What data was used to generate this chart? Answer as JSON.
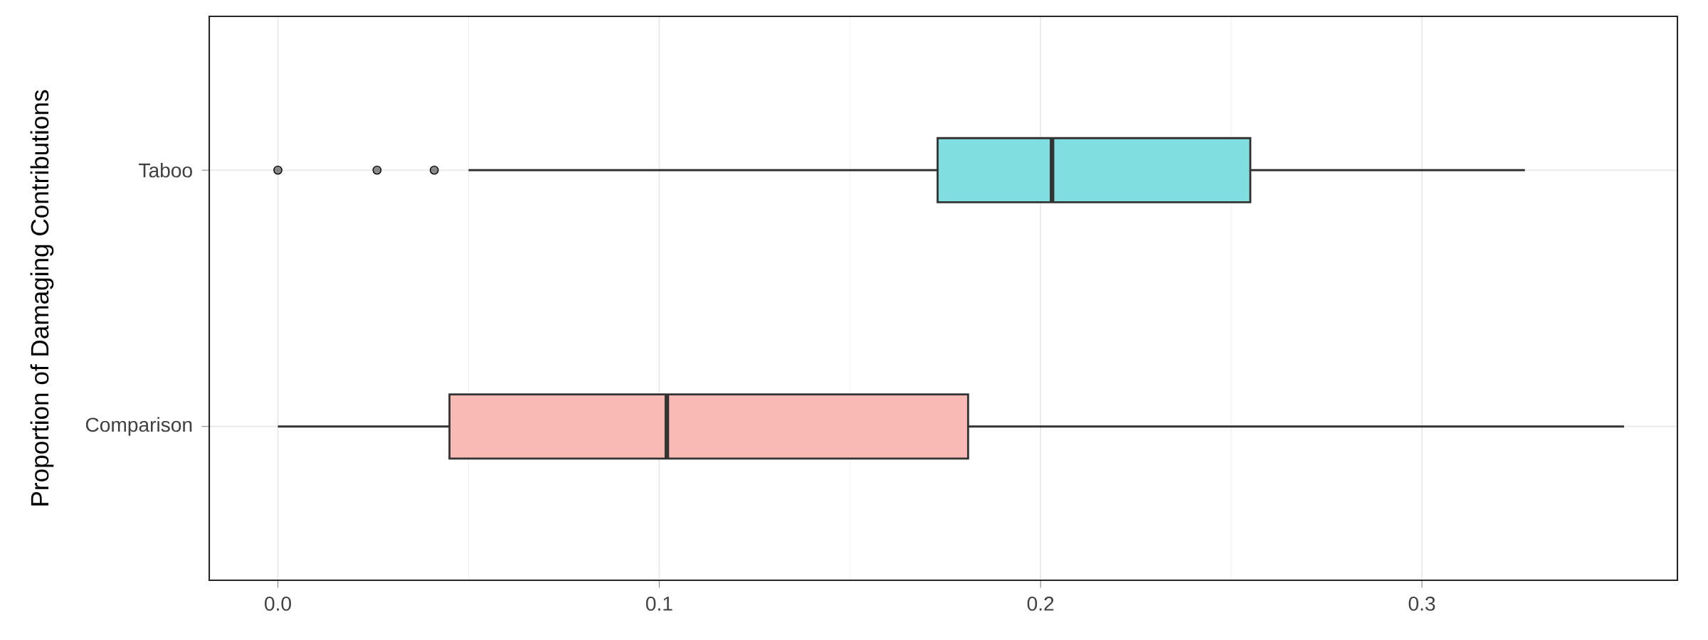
{
  "chart_data": {
    "type": "box",
    "orientation": "horizontal",
    "ylabel": "Proportion of Damaging Contributions",
    "categories": [
      "Taboo",
      "Comparison"
    ],
    "colors": [
      "#80dee0",
      "#f9b9b5"
    ],
    "boxes": [
      {
        "low": 0.05,
        "q1": 0.173,
        "median": 0.203,
        "q3": 0.255,
        "high": 0.327,
        "outliers": [
          0.0,
          0.026,
          0.041
        ]
      },
      {
        "low": 0.0,
        "q1": 0.045,
        "median": 0.102,
        "q3": 0.181,
        "high": 0.353
      }
    ],
    "xlim": [
      -0.018,
      0.367
    ],
    "xticks": [
      {
        "value": 0.0,
        "label": "0.0"
      },
      0.1,
      0.2,
      0.3
    ],
    "grid": true
  }
}
